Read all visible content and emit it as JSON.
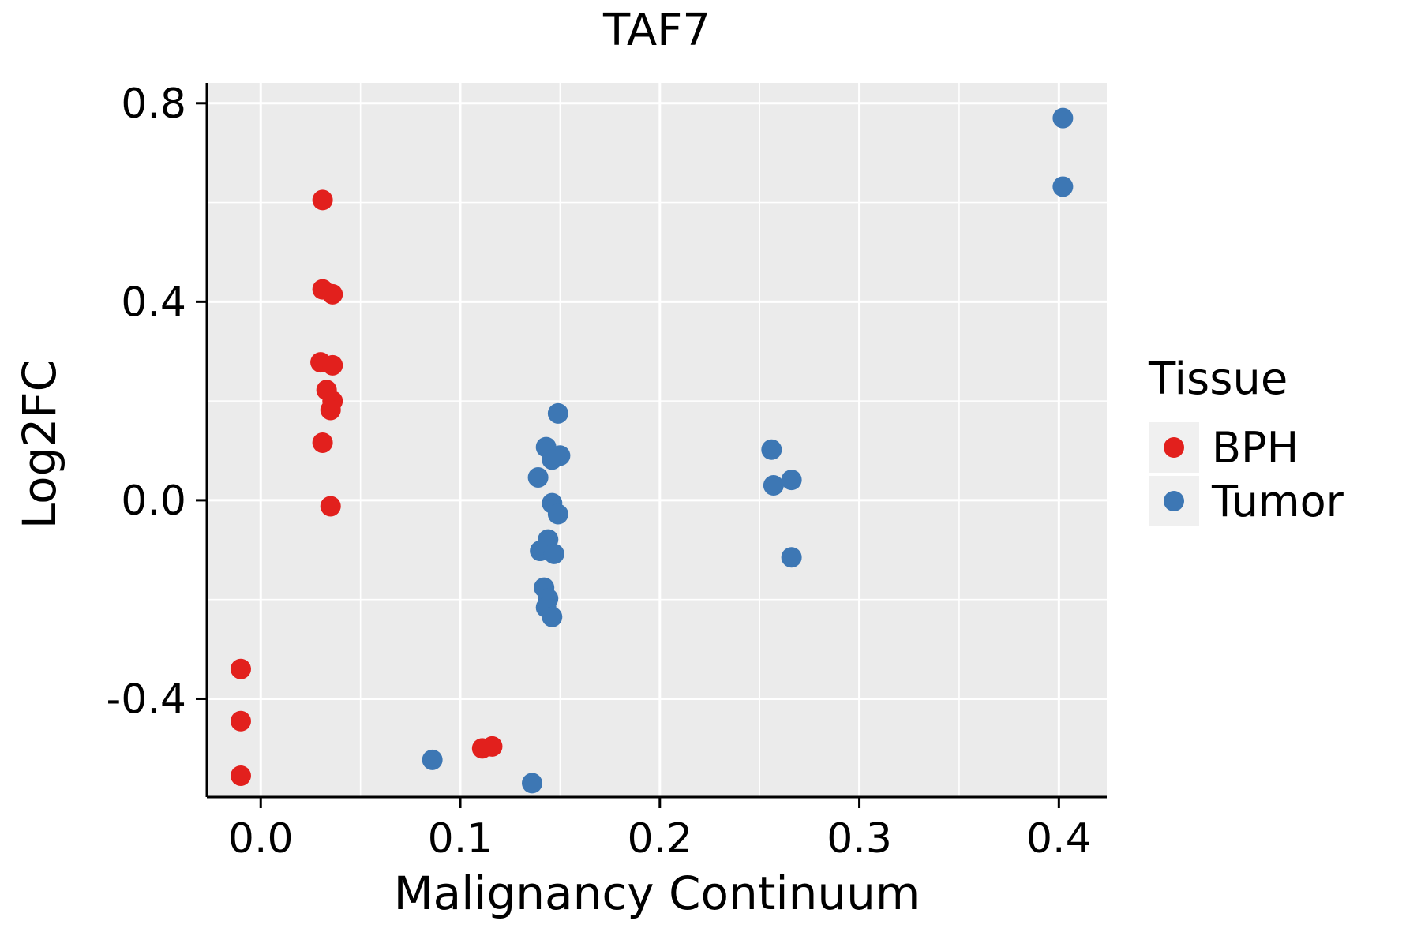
{
  "chart_data": {
    "type": "scatter",
    "title": "TAF7",
    "xlabel": "Malignancy Continuum",
    "ylabel": "Log2FC",
    "xlim": [
      -0.027,
      0.424
    ],
    "ylim": [
      -0.598,
      0.841
    ],
    "xticks": [
      0.0,
      0.1,
      0.2,
      0.3,
      0.4
    ],
    "xtick_labels": [
      "0.0",
      "0.1",
      "0.2",
      "0.3",
      "0.4"
    ],
    "xticks_minor": [
      0.05,
      0.15,
      0.25,
      0.35
    ],
    "yticks": [
      -0.4,
      0.0,
      0.4,
      0.8
    ],
    "ytick_labels": [
      "-0.4",
      "0.0",
      "0.4",
      "0.8"
    ],
    "yticks_minor": [
      -0.2,
      0.2,
      0.6
    ],
    "panel_bg": "#ebebeb",
    "grid_color": "#ffffff",
    "axis_color": "#000000",
    "point_radius_px": 13,
    "legend_position": "right",
    "grid": "on",
    "series": [
      {
        "name": "BPH",
        "color": "#e2201d",
        "points": [
          [
            -0.01,
            -0.34
          ],
          [
            -0.01,
            -0.445
          ],
          [
            -0.01,
            -0.555
          ],
          [
            0.031,
            0.605
          ],
          [
            0.031,
            0.425
          ],
          [
            0.036,
            0.415
          ],
          [
            0.03,
            0.278
          ],
          [
            0.036,
            0.272
          ],
          [
            0.033,
            0.222
          ],
          [
            0.036,
            0.2
          ],
          [
            0.035,
            0.182
          ],
          [
            0.031,
            0.116
          ],
          [
            0.035,
            -0.012
          ],
          [
            0.111,
            -0.5
          ],
          [
            0.116,
            -0.496
          ]
        ]
      },
      {
        "name": "Tumor",
        "color": "#3d77b4",
        "points": [
          [
            0.086,
            -0.523
          ],
          [
            0.136,
            -0.57
          ],
          [
            0.149,
            0.175
          ],
          [
            0.143,
            0.107
          ],
          [
            0.15,
            0.09
          ],
          [
            0.146,
            0.082
          ],
          [
            0.139,
            0.046
          ],
          [
            0.146,
            -0.006
          ],
          [
            0.149,
            -0.028
          ],
          [
            0.144,
            -0.079
          ],
          [
            0.14,
            -0.102
          ],
          [
            0.147,
            -0.108
          ],
          [
            0.142,
            -0.176
          ],
          [
            0.144,
            -0.198
          ],
          [
            0.143,
            -0.216
          ],
          [
            0.146,
            -0.235
          ],
          [
            0.256,
            0.102
          ],
          [
            0.257,
            0.03
          ],
          [
            0.266,
            0.041
          ],
          [
            0.266,
            -0.115
          ],
          [
            0.402,
            0.77
          ],
          [
            0.402,
            0.632
          ]
        ]
      }
    ]
  },
  "legend": {
    "title": "Tissue",
    "entries": [
      {
        "label": "BPH",
        "color": "#e2201d"
      },
      {
        "label": "Tumor",
        "color": "#3d77b4"
      }
    ]
  }
}
